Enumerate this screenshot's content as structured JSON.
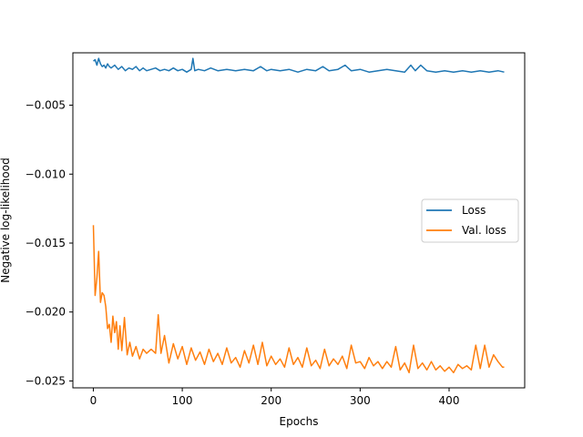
{
  "chart_data": {
    "type": "line",
    "title": "",
    "xlabel": "Epochs",
    "ylabel": "Negative log-likelihood",
    "xlim": [
      -23,
      485
    ],
    "ylim": [
      -0.0255,
      -0.0012
    ],
    "xticks": [
      0,
      100,
      200,
      300,
      400
    ],
    "xtick_labels": [
      "0",
      "100",
      "200",
      "300",
      "400"
    ],
    "yticks": [
      -0.025,
      -0.02,
      -0.015,
      -0.01,
      -0.005
    ],
    "ytick_labels": [
      "−0.025",
      "−0.020",
      "−0.015",
      "−0.010",
      "−0.005"
    ],
    "grid": false,
    "legend_position": "center-right",
    "series": [
      {
        "name": "Loss",
        "color": "#1f77b4",
        "x": [
          0,
          2,
          4,
          6,
          8,
          10,
          12,
          14,
          16,
          18,
          20,
          24,
          28,
          32,
          36,
          40,
          44,
          48,
          52,
          56,
          60,
          65,
          70,
          75,
          80,
          85,
          90,
          95,
          100,
          105,
          110,
          112,
          114,
          118,
          125,
          132,
          140,
          150,
          160,
          170,
          180,
          188,
          195,
          200,
          210,
          220,
          230,
          240,
          250,
          258,
          265,
          275,
          283,
          290,
          300,
          310,
          320,
          330,
          340,
          350,
          357,
          362,
          368,
          375,
          385,
          395,
          405,
          415,
          425,
          435,
          445,
          455,
          462
        ],
        "y": [
          -0.0018,
          -0.0017,
          -0.0021,
          -0.0016,
          -0.002,
          -0.0022,
          -0.0021,
          -0.0023,
          -0.002,
          -0.0022,
          -0.0023,
          -0.0021,
          -0.0024,
          -0.0022,
          -0.0025,
          -0.0023,
          -0.0024,
          -0.0022,
          -0.0025,
          -0.0023,
          -0.0025,
          -0.0024,
          -0.0023,
          -0.0025,
          -0.0024,
          -0.0025,
          -0.0023,
          -0.0025,
          -0.0024,
          -0.0026,
          -0.0024,
          -0.0016,
          -0.0025,
          -0.0024,
          -0.0025,
          -0.0023,
          -0.0025,
          -0.0024,
          -0.0025,
          -0.0024,
          -0.0025,
          -0.0022,
          -0.0025,
          -0.0024,
          -0.0025,
          -0.0024,
          -0.0026,
          -0.0024,
          -0.0025,
          -0.0022,
          -0.0025,
          -0.0024,
          -0.0021,
          -0.0025,
          -0.0024,
          -0.0026,
          -0.0025,
          -0.0024,
          -0.0025,
          -0.0026,
          -0.0021,
          -0.0025,
          -0.0021,
          -0.0025,
          -0.0026,
          -0.0025,
          -0.0026,
          -0.0025,
          -0.0026,
          -0.0025,
          -0.0026,
          -0.0025,
          -0.0026
        ]
      },
      {
        "name": "Val. loss",
        "color": "#ff7f0e",
        "x": [
          0,
          2,
          4,
          6,
          8,
          10,
          12,
          14,
          16,
          18,
          20,
          22,
          24,
          26,
          28,
          30,
          32,
          35,
          38,
          41,
          44,
          48,
          52,
          56,
          60,
          65,
          70,
          73,
          76,
          80,
          85,
          90,
          95,
          100,
          105,
          110,
          115,
          120,
          125,
          130,
          135,
          140,
          145,
          150,
          155,
          160,
          165,
          170,
          175,
          180,
          185,
          190,
          195,
          200,
          205,
          210,
          215,
          220,
          225,
          230,
          235,
          240,
          245,
          250,
          255,
          260,
          265,
          270,
          275,
          280,
          285,
          290,
          295,
          300,
          305,
          310,
          315,
          320,
          325,
          330,
          335,
          340,
          345,
          350,
          355,
          360,
          365,
          370,
          375,
          380,
          385,
          390,
          395,
          400,
          405,
          410,
          415,
          420,
          425,
          430,
          435,
          440,
          445,
          450,
          455,
          460,
          462
        ],
        "y": [
          -0.0137,
          -0.0188,
          -0.0175,
          -0.0156,
          -0.0193,
          -0.0186,
          -0.0188,
          -0.0196,
          -0.0212,
          -0.0209,
          -0.0222,
          -0.0203,
          -0.0215,
          -0.0207,
          -0.0227,
          -0.021,
          -0.0228,
          -0.0204,
          -0.0231,
          -0.0222,
          -0.0232,
          -0.0225,
          -0.0234,
          -0.0227,
          -0.023,
          -0.0227,
          -0.023,
          -0.0202,
          -0.023,
          -0.0217,
          -0.0237,
          -0.0223,
          -0.0234,
          -0.0225,
          -0.0238,
          -0.0226,
          -0.0235,
          -0.0229,
          -0.0238,
          -0.0227,
          -0.0236,
          -0.023,
          -0.0238,
          -0.0226,
          -0.0237,
          -0.0233,
          -0.024,
          -0.0228,
          -0.0237,
          -0.0224,
          -0.0238,
          -0.0222,
          -0.0239,
          -0.0232,
          -0.0238,
          -0.0234,
          -0.024,
          -0.0226,
          -0.0238,
          -0.0233,
          -0.024,
          -0.0226,
          -0.0239,
          -0.0235,
          -0.0241,
          -0.0227,
          -0.0239,
          -0.0234,
          -0.0238,
          -0.0232,
          -0.0241,
          -0.0224,
          -0.0237,
          -0.0236,
          -0.0241,
          -0.0233,
          -0.0239,
          -0.0236,
          -0.0241,
          -0.0236,
          -0.024,
          -0.0225,
          -0.0242,
          -0.0237,
          -0.0244,
          -0.0224,
          -0.0241,
          -0.0237,
          -0.0242,
          -0.0236,
          -0.0242,
          -0.0239,
          -0.0243,
          -0.024,
          -0.0244,
          -0.0238,
          -0.0241,
          -0.0239,
          -0.0242,
          -0.0224,
          -0.0241,
          -0.0224,
          -0.024,
          -0.0231,
          -0.0236,
          -0.024,
          -0.024
        ]
      }
    ]
  }
}
